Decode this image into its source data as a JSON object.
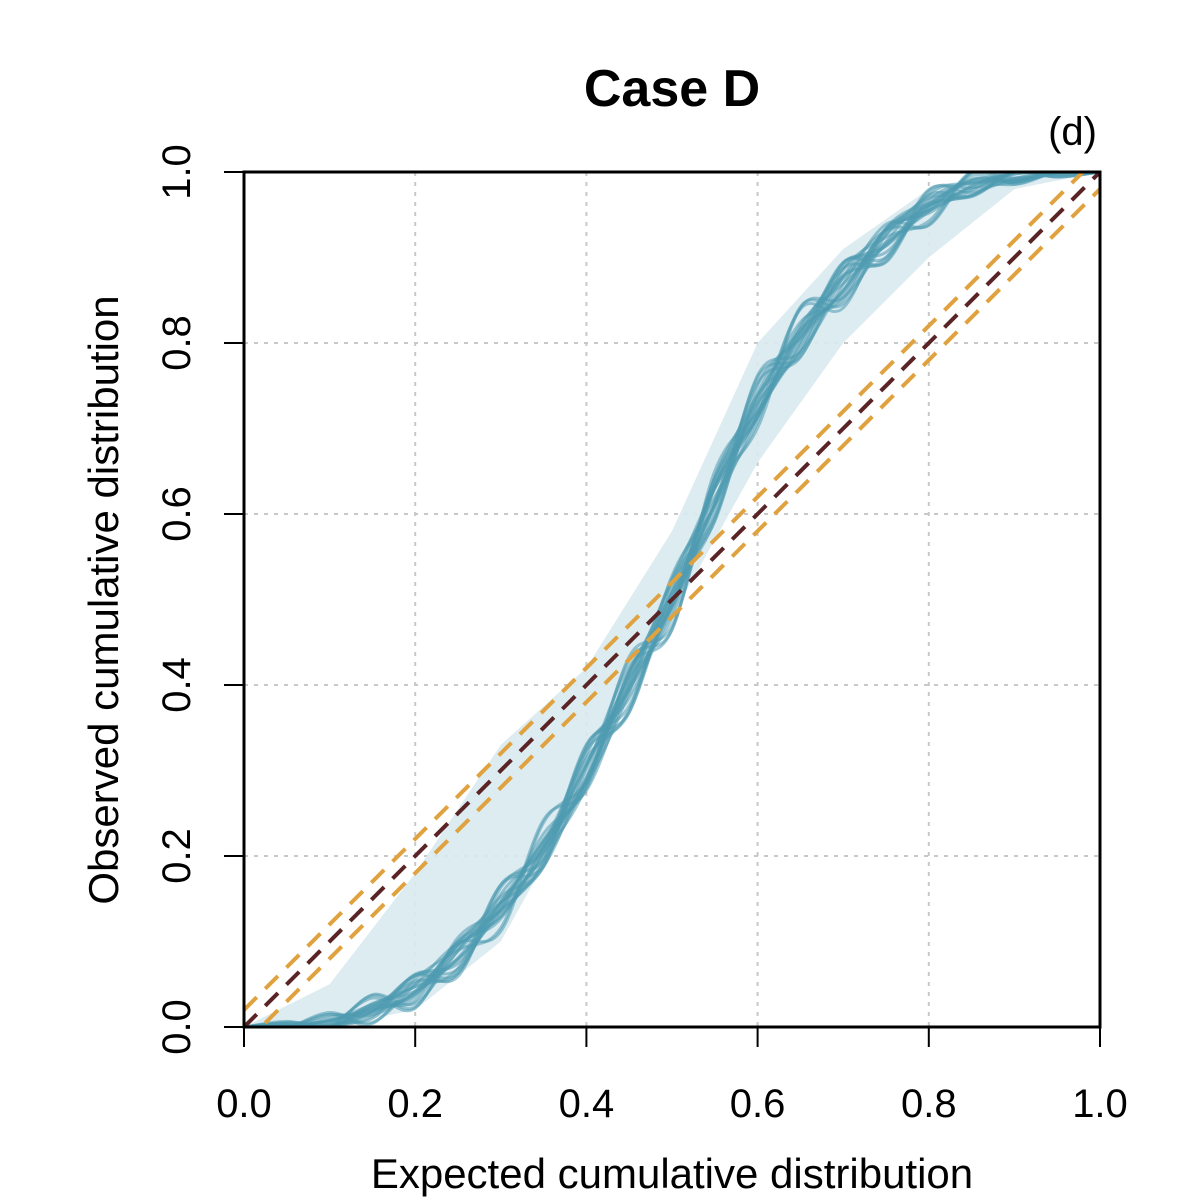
{
  "chart_data": {
    "type": "line",
    "title": "Case D",
    "panel_label": "(d)",
    "xlabel": "Expected cumulative distribution",
    "ylabel": "Observed cumulative distribution",
    "xlim": [
      0,
      1
    ],
    "ylim": [
      0,
      1
    ],
    "x_ticks": [
      "0.0",
      "0.2",
      "0.4",
      "0.6",
      "0.8",
      "1.0"
    ],
    "y_ticks": [
      "0.0",
      "0.2",
      "0.4",
      "0.6",
      "0.8",
      "1.0"
    ],
    "grid": true,
    "colors": {
      "ensemble": "#4E9BB0",
      "envelope": "#D9EAEF",
      "reference": "#5A2426",
      "bounds": "#E0A23E",
      "grid": "#C8C8C8"
    },
    "series": [
      {
        "name": "envelope",
        "x": [
          0.0,
          0.1,
          0.2,
          0.3,
          0.4,
          0.5,
          0.6,
          0.7,
          0.8,
          0.9,
          1.0
        ],
        "lower": [
          0.0,
          0.0,
          0.02,
          0.1,
          0.28,
          0.48,
          0.66,
          0.8,
          0.9,
          0.98,
          1.0
        ],
        "upper": [
          0.0,
          0.05,
          0.18,
          0.33,
          0.42,
          0.58,
          0.8,
          0.91,
          0.98,
          1.0,
          1.0
        ]
      },
      {
        "name": "observed-ensemble",
        "count": 20,
        "x": [
          0.0,
          0.05,
          0.1,
          0.15,
          0.2,
          0.25,
          0.3,
          0.35,
          0.4,
          0.45,
          0.5,
          0.55,
          0.6,
          0.65,
          0.7,
          0.75,
          0.8,
          0.85,
          0.9,
          0.95,
          1.0
        ],
        "y": [
          0.0,
          0.0,
          0.005,
          0.02,
          0.045,
          0.085,
          0.14,
          0.21,
          0.3,
          0.4,
          0.5,
          0.62,
          0.73,
          0.81,
          0.87,
          0.92,
          0.96,
          0.985,
          0.995,
          1.0,
          1.0
        ]
      },
      {
        "name": "expected",
        "x": [
          0.0,
          1.0
        ],
        "y": [
          0.0,
          1.0
        ]
      },
      {
        "name": "upper-bound",
        "x": [
          0.0,
          1.0
        ],
        "y": [
          0.02,
          1.02
        ]
      },
      {
        "name": "lower-bound",
        "x": [
          0.0,
          1.0
        ],
        "y": [
          -0.02,
          0.98
        ]
      }
    ]
  }
}
